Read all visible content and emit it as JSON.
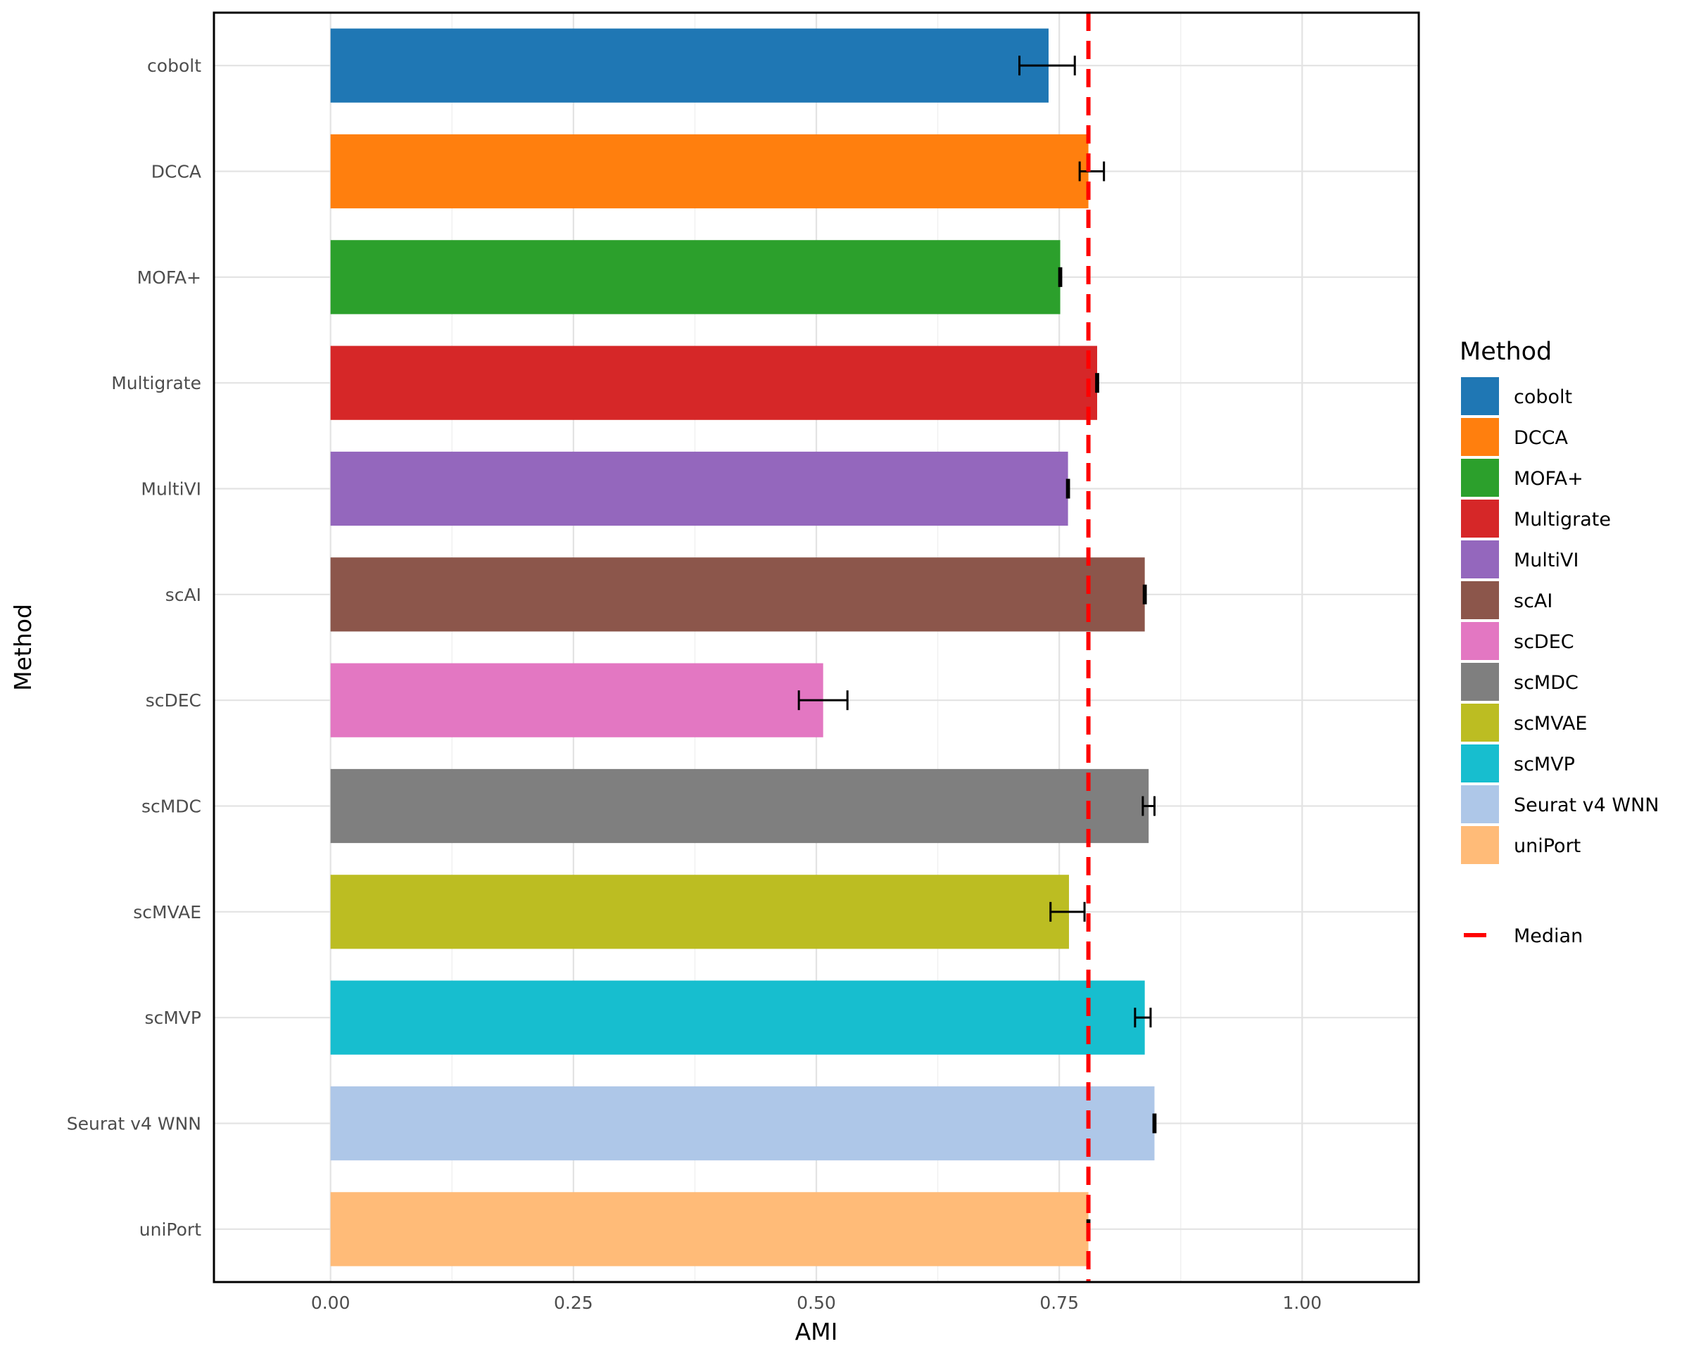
{
  "chart_data": {
    "type": "bar",
    "orientation": "horizontal",
    "title": "",
    "xlabel": "AMI",
    "ylabel": "Method",
    "xlim": [
      -0.12,
      1.12
    ],
    "x_ticks": [
      0.0,
      0.25,
      0.5,
      0.75,
      1.0
    ],
    "x_tick_labels": [
      "0.00",
      "0.25",
      "0.50",
      "0.75",
      "1.00"
    ],
    "grid": true,
    "categories": [
      "cobolt",
      "DCCA",
      "MOFA+",
      "Multigrate",
      "MultiVI",
      "scAI",
      "scDEC",
      "scMDC",
      "scMVAE",
      "scMVP",
      "Seurat v4 WNN",
      "uniPort"
    ],
    "values": [
      0.739,
      0.78,
      0.751,
      0.789,
      0.759,
      0.838,
      0.507,
      0.842,
      0.76,
      0.838,
      0.848,
      0.78
    ],
    "error_low": [
      0.709,
      0.771,
      0.75,
      0.788,
      0.758,
      0.837,
      0.482,
      0.836,
      0.741,
      0.828,
      0.847,
      0.779
    ],
    "error_high": [
      0.766,
      0.796,
      0.752,
      0.79,
      0.76,
      0.839,
      0.532,
      0.848,
      0.776,
      0.844,
      0.849,
      0.781
    ],
    "colors": [
      "#1f77b4",
      "#ff7f0e",
      "#2ca02c",
      "#d62728",
      "#9467bd",
      "#8c564b",
      "#e377c2",
      "#7f7f7f",
      "#bcbd22",
      "#17becf",
      "#aec7e8",
      "#ffbb78"
    ],
    "median": 0.78,
    "median_color": "#ff0000",
    "legend": {
      "title": "Method",
      "position": "right",
      "median_label": "Median"
    }
  }
}
